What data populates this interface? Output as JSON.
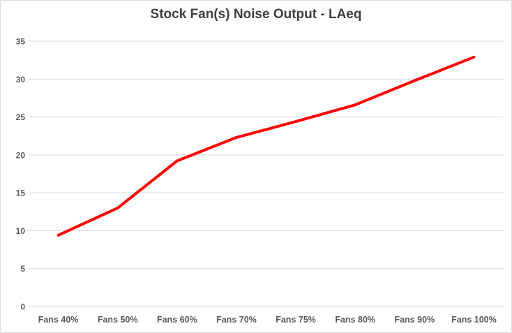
{
  "chart": {
    "title": "Stock Fan(s) Noise Output - LAeq"
  },
  "chart_data": {
    "type": "line",
    "title": "Stock Fan(s) Noise Output - LAeq",
    "xlabel": "",
    "ylabel": "",
    "categories": [
      "Fans 40%",
      "Fans 50%",
      "Fans 60%",
      "Fans 70%",
      "Fans 75%",
      "Fans 80%",
      "Fans 90%",
      "Fans 100%"
    ],
    "series": [
      {
        "name": "LAeq",
        "values": [
          9.4,
          13.0,
          19.2,
          22.3,
          24.4,
          26.6,
          29.8,
          32.9
        ],
        "color": "#ff0000"
      }
    ],
    "ylim": [
      0,
      35
    ],
    "ytick_step": 5,
    "ytick_labels": [
      "0",
      "5",
      "10",
      "15",
      "20",
      "25",
      "30",
      "35"
    ],
    "grid": true,
    "legend": "none",
    "colors": {
      "line": "#ff0000",
      "gridline": "#d9d9d9",
      "title_text": "#404040",
      "axis_text": "#595959",
      "border": "#d9d9d9",
      "background": "#ffffff"
    }
  }
}
